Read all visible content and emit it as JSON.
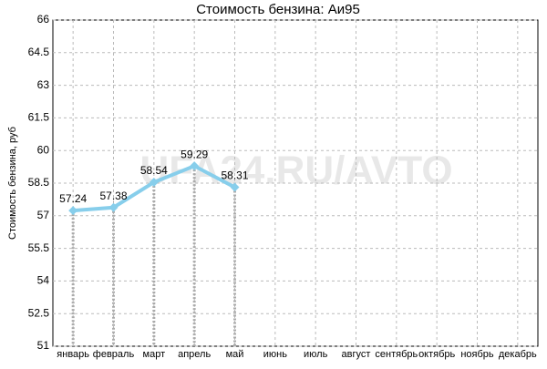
{
  "chart_data": {
    "type": "line",
    "title": "Стоимость бензина: Аи95",
    "y_label": "Стоимость бензина, руб",
    "watermark": "UFA24.RU/AVTO",
    "categories": [
      "январь",
      "февраль",
      "март",
      "апрель",
      "май",
      "июнь",
      "июль",
      "август",
      "сентябрь",
      "октябрь",
      "ноябрь",
      "декабрь"
    ],
    "values": [
      57.24,
      57.38,
      58.54,
      59.29,
      58.31,
      null,
      null,
      null,
      null,
      null,
      null,
      null
    ],
    "color": "#87ceeb",
    "ylim": [
      51,
      66
    ],
    "yticks": [
      51,
      52.5,
      54,
      55.5,
      57,
      58.5,
      60,
      61.5,
      63,
      64.5,
      66
    ],
    "grid": true
  }
}
